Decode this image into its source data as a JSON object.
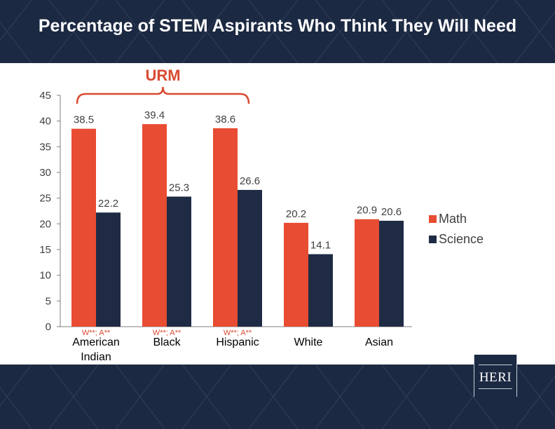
{
  "title": "Percentage of STEM Aspirants Who Think They Will Need",
  "bracket_label": "URM",
  "logo_text": "HERI",
  "colors": {
    "band": "#1c2942",
    "math": "#e84c33",
    "science": "#1f2b45",
    "urm": "#d94a31",
    "axis": "#7f7f7f",
    "text": "#404040"
  },
  "chart_data": {
    "type": "bar",
    "title": "Percentage of STEM Aspirants Who Think They Will Need",
    "categories": [
      "American Indian",
      "Black",
      "Hispanic",
      "White",
      "Asian"
    ],
    "category_lines": [
      [
        "American",
        "Indian"
      ],
      [
        "Black"
      ],
      [
        "Hispanic"
      ],
      [
        "White"
      ],
      [
        "Asian"
      ]
    ],
    "series": [
      {
        "name": "Math",
        "values": [
          38.5,
          39.4,
          38.6,
          20.2,
          20.9
        ]
      },
      {
        "name": "Science",
        "values": [
          22.2,
          25.3,
          26.6,
          14.1,
          20.6
        ]
      }
    ],
    "data_labels": {
      "Math": [
        "38.5",
        "39.4",
        "38.6",
        "20.2",
        "20.9"
      ],
      "Science": [
        "22.2",
        "25.3",
        "26.6",
        "14.1",
        "20.6"
      ]
    },
    "significance": [
      "W**; A**",
      "W**; A**",
      "W**; A**",
      "",
      ""
    ],
    "yticks": [
      0,
      5,
      10,
      15,
      20,
      25,
      30,
      35,
      40,
      45
    ],
    "ylim": [
      0,
      45
    ],
    "xlabel": "",
    "ylabel": "",
    "grid": false,
    "legend_position": "right"
  }
}
